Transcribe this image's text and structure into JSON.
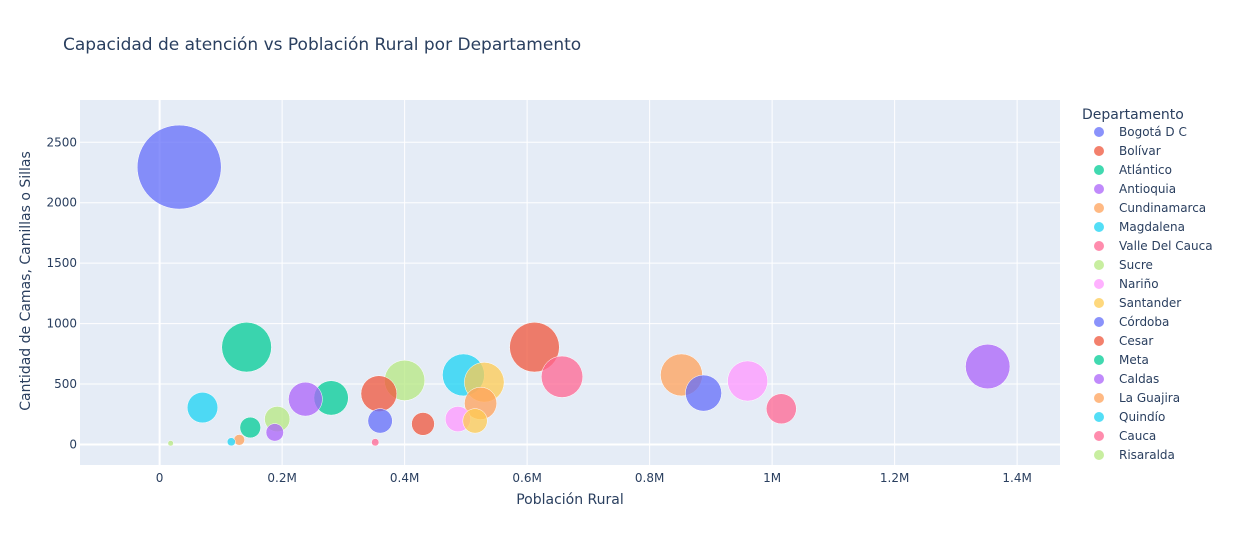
{
  "chart_data": {
    "type": "scatter",
    "title": "Capacidad de atención vs Población Rural por Departamento",
    "xlabel": "Población Rural",
    "ylabel": "Cantidad de Camas, Camillas o Sillas",
    "xlim": [
      -130000,
      1470000
    ],
    "ylim": [
      -170,
      2850
    ],
    "x_ticks": [
      0,
      200000,
      400000,
      600000,
      800000,
      1000000,
      1200000,
      1400000
    ],
    "x_tick_labels": [
      "0",
      "0.2M",
      "0.4M",
      "0.6M",
      "0.8M",
      "1M",
      "1.2M",
      "1.4M"
    ],
    "y_ticks": [
      0,
      500,
      1000,
      1500,
      2000,
      2500
    ],
    "y_tick_labels": [
      "0",
      "500",
      "1000",
      "1500",
      "2000",
      "2500"
    ],
    "grid": true,
    "plot_background": "#e5ecf6",
    "legend_title": "Departamento",
    "legend_position": "right",
    "series": [
      {
        "name": "Bogotá D C",
        "color": "#636efa",
        "points": [
          {
            "x": 32000,
            "y": 2295
          },
          {
            "x": 360000,
            "y": 195
          },
          {
            "x": 888000,
            "y": 425
          }
        ]
      },
      {
        "name": "Bolívar",
        "color": "#EF553B",
        "points": [
          {
            "x": 612000,
            "y": 805
          },
          {
            "x": 358000,
            "y": 420
          },
          {
            "x": 430000,
            "y": 170
          }
        ]
      },
      {
        "name": "Atlántico",
        "color": "#00cc96",
        "points": [
          {
            "x": 142000,
            "y": 805
          },
          {
            "x": 280000,
            "y": 385
          },
          {
            "x": 148000,
            "y": 140
          }
        ]
      },
      {
        "name": "Antioquia",
        "color": "#ab63fa",
        "points": [
          {
            "x": 1352000,
            "y": 645
          },
          {
            "x": 238000,
            "y": 375
          },
          {
            "x": 188000,
            "y": 100
          }
        ]
      },
      {
        "name": "Cundinamarca",
        "color": "#FFA15A",
        "points": [
          {
            "x": 852000,
            "y": 575
          },
          {
            "x": 524000,
            "y": 340
          },
          {
            "x": 130000,
            "y": 38
          }
        ]
      },
      {
        "name": "Magdalena",
        "color": "#19d3f3",
        "points": [
          {
            "x": 496000,
            "y": 575
          },
          {
            "x": 70000,
            "y": 305
          },
          {
            "x": 117000,
            "y": 22
          }
        ]
      },
      {
        "name": "Valle Del Cauca",
        "color": "#FF6692",
        "points": [
          {
            "x": 657000,
            "y": 560
          },
          {
            "x": 1015000,
            "y": 295
          },
          {
            "x": 352000,
            "y": 18
          }
        ]
      },
      {
        "name": "Sucre",
        "color": "#B6E880",
        "points": [
          {
            "x": 400000,
            "y": 530
          },
          {
            "x": 192000,
            "y": 210
          },
          {
            "x": 18000,
            "y": 10
          }
        ]
      },
      {
        "name": "Nariño",
        "color": "#FF97FF",
        "points": [
          {
            "x": 960000,
            "y": 525
          },
          {
            "x": 487000,
            "y": 210
          }
        ]
      },
      {
        "name": "Santander",
        "color": "#FECB52",
        "points": [
          {
            "x": 530000,
            "y": 515
          },
          {
            "x": 515000,
            "y": 195
          }
        ]
      },
      {
        "name": "Córdoba",
        "color": "#636efa",
        "points": []
      },
      {
        "name": "Cesar",
        "color": "#EF553B",
        "points": []
      },
      {
        "name": "Meta",
        "color": "#00cc96",
        "points": []
      },
      {
        "name": "Caldas",
        "color": "#ab63fa",
        "points": []
      },
      {
        "name": "La Guajira",
        "color": "#FFA15A",
        "points": []
      },
      {
        "name": "Quindío",
        "color": "#19d3f3",
        "points": []
      },
      {
        "name": "Cauca",
        "color": "#FF6692",
        "points": []
      },
      {
        "name": "Risaralda",
        "color": "#B6E880",
        "points": []
      }
    ]
  }
}
